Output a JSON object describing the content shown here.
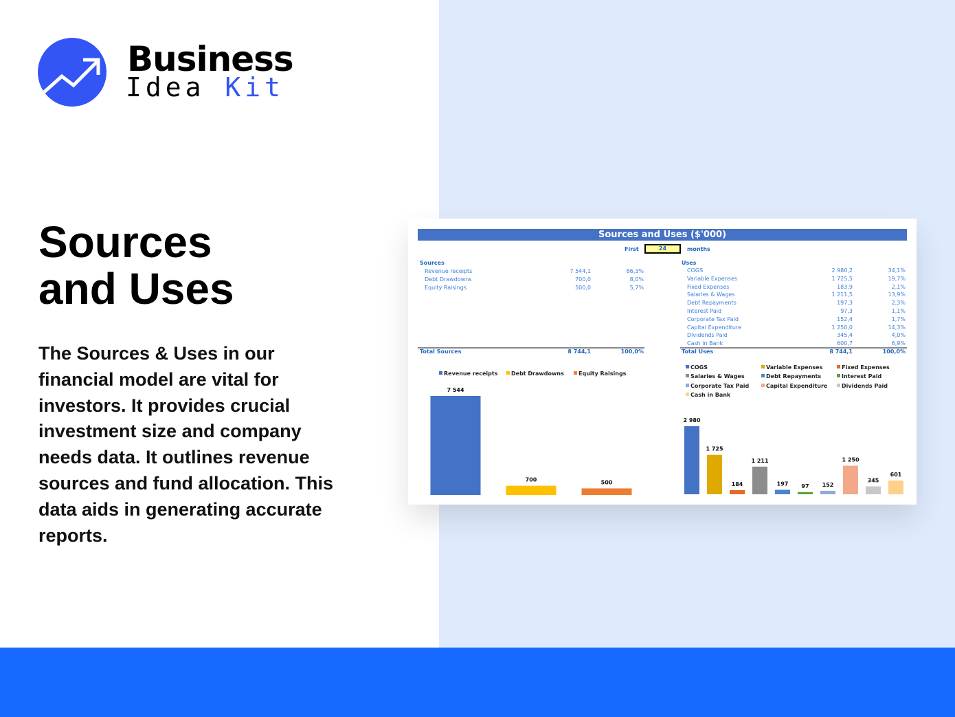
{
  "brand": {
    "line1": "Business",
    "line2a": "Idea",
    "line2b": "Kit",
    "accent": "#3355f5"
  },
  "heading": {
    "line1": "Sources",
    "line2": "and Uses"
  },
  "description": "The Sources & Uses in our financial model are vital for investors. It provides crucial investment size and company needs data. It outlines revenue sources and fund allocation. This data aids in generating accurate reports.",
  "sheet": {
    "title": "Sources and Uses ($'000)",
    "period": {
      "prefix": "First",
      "value": "24",
      "suffix": "months"
    },
    "sources": {
      "header": "Sources",
      "rows": [
        {
          "label": "Revenue receipts",
          "value": "7 544,1",
          "pct": "86,3%"
        },
        {
          "label": "Debt Drawdowns",
          "value": "700,0",
          "pct": "8,0%"
        },
        {
          "label": "Equity Raisings",
          "value": "500,0",
          "pct": "5,7%"
        }
      ],
      "total": {
        "label": "Total Sources",
        "value": "8 744,1",
        "pct": "100,0%"
      }
    },
    "uses": {
      "header": "Uses",
      "rows": [
        {
          "label": "COGS",
          "value": "2 980,2",
          "pct": "34,1%"
        },
        {
          "label": "Variable Expenses",
          "value": "1 725,5",
          "pct": "19,7%"
        },
        {
          "label": "Fixed Expenses",
          "value": "183,9",
          "pct": "2,1%"
        },
        {
          "label": "Salaries & Wages",
          "value": "1 211,5",
          "pct": "13,9%"
        },
        {
          "label": "Debt Repayments",
          "value": "197,3",
          "pct": "2,3%"
        },
        {
          "label": "Interest Paid",
          "value": "97,3",
          "pct": "1,1%"
        },
        {
          "label": "Corporate Tax Paid",
          "value": "152,4",
          "pct": "1,7%"
        },
        {
          "label": "Capital Expenditure",
          "value": "1 250,0",
          "pct": "14,3%"
        },
        {
          "label": "Dividends Paid",
          "value": "345,4",
          "pct": "4,0%"
        },
        {
          "label": "Cash in Bank",
          "value": "600,7",
          "pct": "6,9%"
        }
      ],
      "total": {
        "label": "Total Uses",
        "value": "8 744,1",
        "pct": "100,0%"
      }
    }
  },
  "chart_data": [
    {
      "type": "bar",
      "legend": "top",
      "categories": [
        "Revenue receipts",
        "Debt Drawdowns",
        "Equity Raisings"
      ],
      "values": [
        7544,
        700,
        500
      ],
      "labels": [
        "7 544",
        "700",
        "500"
      ],
      "colors": [
        "#4472c4",
        "#ffc000",
        "#ed7d31"
      ]
    },
    {
      "type": "bar",
      "legend": "top",
      "categories": [
        "COGS",
        "Variable Expenses",
        "Fixed Expenses",
        "Salaries & Wages",
        "Debt Repayments",
        "Interest Paid",
        "Corporate Tax Paid",
        "Capital Expenditure",
        "Dividends Paid",
        "Cash in Bank"
      ],
      "values": [
        2980,
        1725,
        184,
        1211,
        197,
        97,
        152,
        1250,
        345,
        601
      ],
      "labels": [
        "2 980",
        "1 725",
        "184",
        "1 211",
        "197",
        "97",
        "152",
        "1 250",
        "345",
        "601"
      ],
      "colors": [
        "#4472c4",
        "#dea900",
        "#e26b2a",
        "#8c8c8c",
        "#4a86c5",
        "#5aa33c",
        "#8faadc",
        "#f4a88a",
        "#c8c8c8",
        "#ffd08a"
      ]
    }
  ]
}
